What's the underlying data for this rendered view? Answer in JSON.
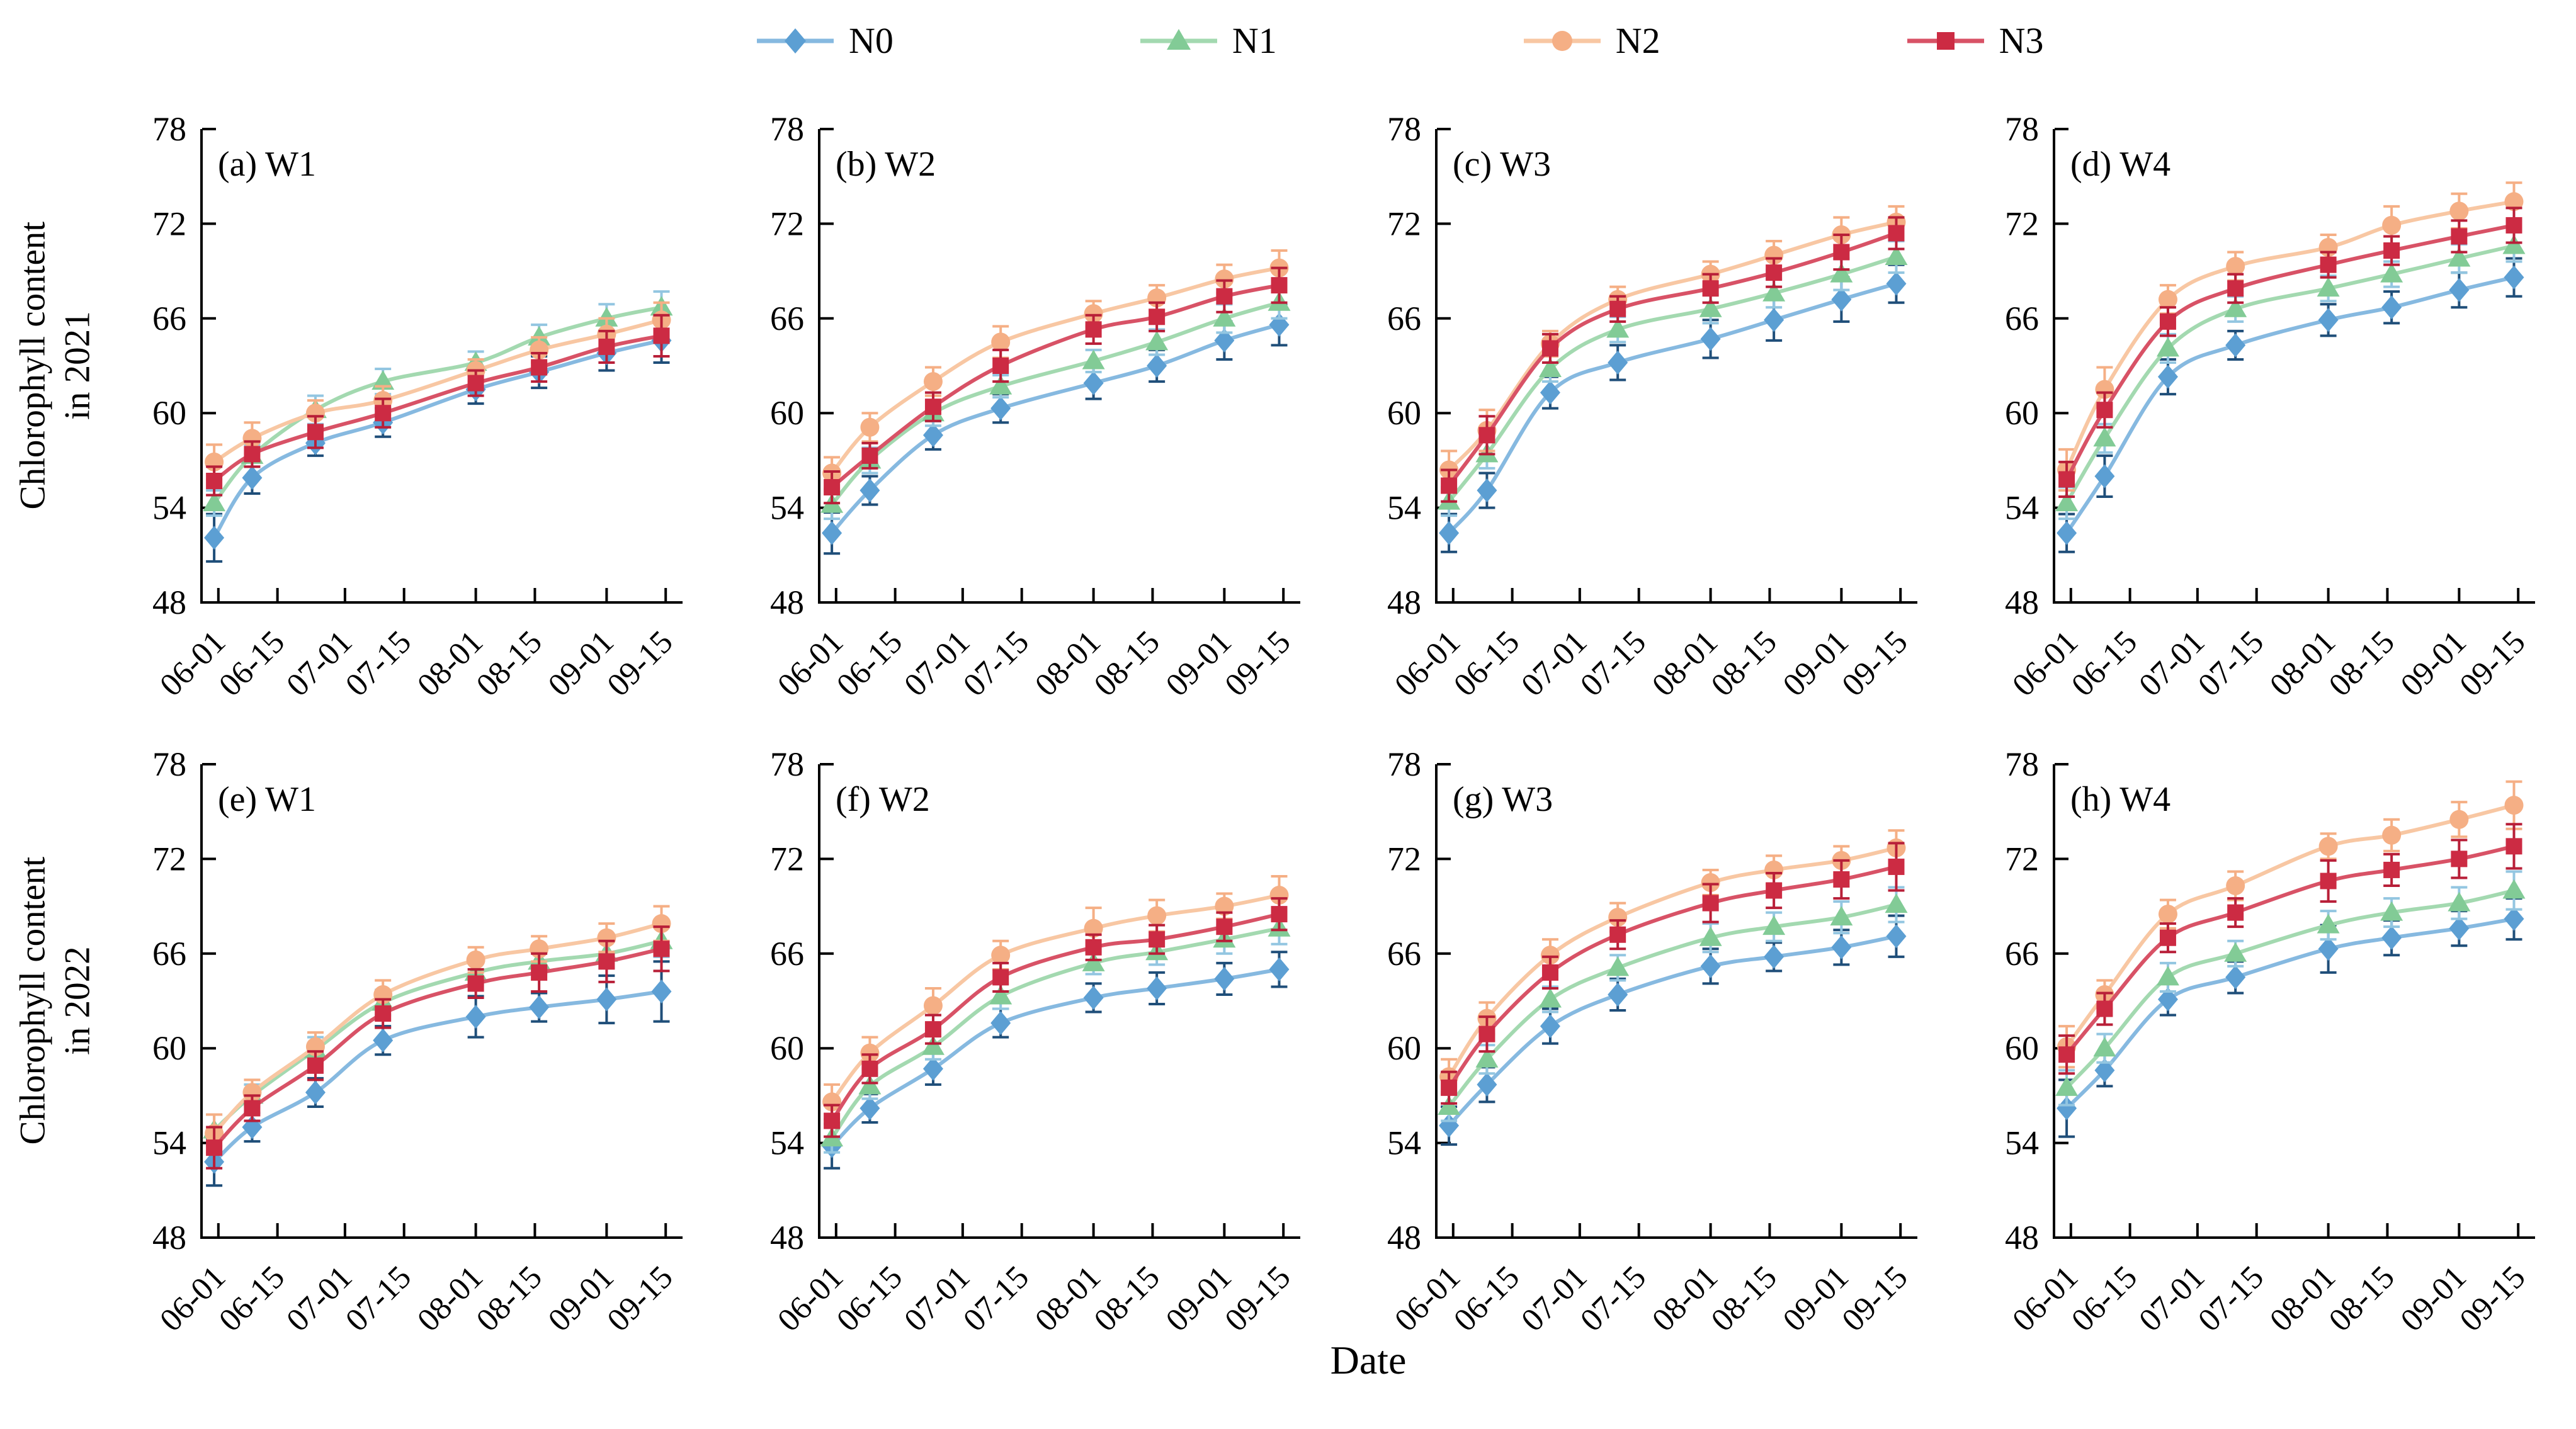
{
  "figure": {
    "legend": [
      {
        "label": "N0"
      },
      {
        "label": "N1"
      },
      {
        "label": "N2"
      },
      {
        "label": "N3"
      }
    ],
    "y_axis_titles": [
      {
        "line1": "Chlorophyll content",
        "line2": "in 2021"
      },
      {
        "line1": "Chlorophyll content",
        "line2": "in 2022"
      }
    ],
    "x_axis_title": "Date"
  },
  "chart_data": {
    "type": "line",
    "ylim": [
      48,
      78
    ],
    "y_ticks": [
      48,
      54,
      60,
      66,
      72,
      78
    ],
    "x_tick_labels": [
      "06-01",
      "06-15",
      "07-01",
      "07-15",
      "08-01",
      "08-15",
      "09-01",
      "09-15"
    ],
    "x_tick_days": [
      0,
      14,
      30,
      44,
      61,
      75,
      92,
      106
    ],
    "x_domain_days": [
      -4,
      110
    ],
    "x_point_days": [
      -1,
      8,
      23,
      39,
      61,
      76,
      92,
      105
    ],
    "x_point_dates_estimated": [
      "05-31",
      "06-09",
      "06-24",
      "07-10",
      "08-01",
      "08-16",
      "09-01",
      "09-14"
    ],
    "grid": false,
    "legend_position": "top",
    "series_styles": {
      "N0": {
        "marker": "diamond",
        "marker_color": "#5C9FD3",
        "line_color": "#86B9E0",
        "error_color": "#1F4E79"
      },
      "N1": {
        "marker": "triangle",
        "marker_color": "#82CB96",
        "line_color": "#A3D9B0",
        "error_color": "#93C6E1"
      },
      "N2": {
        "marker": "circle",
        "marker_color": "#F5AF85",
        "line_color": "#F8C7A3",
        "error_color": "#F5AF85"
      },
      "N3": {
        "marker": "square",
        "marker_color": "#CC2B43",
        "line_color": "#D85266",
        "error_color": "#B81F38"
      }
    },
    "panels": [
      {
        "label": "(a) W1",
        "year": 2021,
        "row": 0,
        "col": 0,
        "series": [
          {
            "name": "N0",
            "values": [
              52.1,
              55.9,
              58.1,
              59.4,
              61.5,
              62.6,
              63.8,
              64.6
            ],
            "errors": [
              1.5,
              1.0,
              0.8,
              0.9,
              0.9,
              1.0,
              1.1,
              1.4
            ]
          },
          {
            "name": "N1",
            "values": [
              54.3,
              57.3,
              60.2,
              62.0,
              63.2,
              64.8,
              66.0,
              66.7
            ],
            "errors": [
              0.8,
              0.7,
              0.9,
              0.8,
              0.7,
              0.8,
              0.9,
              1.0
            ]
          },
          {
            "name": "N2",
            "values": [
              56.9,
              58.4,
              60.0,
              60.8,
              62.7,
              64.0,
              65.0,
              65.9
            ],
            "errors": [
              1.1,
              1.0,
              0.8,
              0.9,
              0.7,
              0.8,
              1.0,
              1.1
            ]
          },
          {
            "name": "N3",
            "values": [
              55.7,
              57.4,
              58.8,
              60.0,
              61.9,
              62.9,
              64.2,
              64.9
            ],
            "errors": [
              0.9,
              0.8,
              1.0,
              0.9,
              0.8,
              0.9,
              1.0,
              1.3
            ]
          }
        ]
      },
      {
        "label": "(b) W2",
        "year": 2021,
        "row": 0,
        "col": 1,
        "series": [
          {
            "name": "N0",
            "values": [
              52.4,
              55.1,
              58.6,
              60.3,
              61.9,
              63.0,
              64.6,
              65.6
            ],
            "errors": [
              1.3,
              0.9,
              0.9,
              0.9,
              1.0,
              1.0,
              1.2,
              1.3
            ]
          },
          {
            "name": "N1",
            "values": [
              54.2,
              57.0,
              60.0,
              61.7,
              63.3,
              64.5,
              66.0,
              67.0
            ],
            "errors": [
              0.9,
              0.8,
              0.8,
              0.7,
              0.7,
              0.8,
              0.9,
              1.0
            ]
          },
          {
            "name": "N2",
            "values": [
              56.2,
              59.1,
              62.0,
              64.5,
              66.3,
              67.3,
              68.5,
              69.2
            ],
            "errors": [
              1.0,
              0.9,
              0.9,
              1.0,
              0.8,
              0.8,
              0.9,
              1.1
            ]
          },
          {
            "name": "N3",
            "values": [
              55.3,
              57.3,
              60.4,
              63.0,
              65.3,
              66.1,
              67.4,
              68.1
            ],
            "errors": [
              1.0,
              0.8,
              0.9,
              1.0,
              0.9,
              0.9,
              1.0,
              1.1
            ]
          }
        ]
      },
      {
        "label": "(c) W3",
        "year": 2021,
        "row": 0,
        "col": 2,
        "series": [
          {
            "name": "N0",
            "values": [
              52.4,
              55.1,
              61.3,
              63.2,
              64.7,
              65.9,
              67.2,
              68.2
            ],
            "errors": [
              1.2,
              1.1,
              1.0,
              1.1,
              1.2,
              1.3,
              1.4,
              1.2
            ]
          },
          {
            "name": "N1",
            "values": [
              54.4,
              57.4,
              62.8,
              65.3,
              66.6,
              67.6,
              68.8,
              69.9
            ],
            "errors": [
              0.9,
              0.9,
              0.8,
              0.8,
              0.9,
              0.9,
              1.0,
              1.0
            ]
          },
          {
            "name": "N2",
            "values": [
              56.4,
              58.9,
              64.4,
              67.2,
              68.8,
              70.0,
              71.3,
              72.1
            ],
            "errors": [
              1.2,
              1.3,
              0.8,
              0.8,
              0.8,
              0.9,
              1.1,
              1.0
            ]
          },
          {
            "name": "N3",
            "values": [
              55.4,
              58.6,
              64.1,
              66.6,
              67.9,
              68.9,
              70.2,
              71.4
            ],
            "errors": [
              1.0,
              1.2,
              0.9,
              0.8,
              0.9,
              0.9,
              1.1,
              1.0
            ]
          }
        ]
      },
      {
        "label": "(d) W4",
        "year": 2021,
        "row": 0,
        "col": 3,
        "series": [
          {
            "name": "N0",
            "values": [
              52.4,
              56.0,
              62.3,
              64.3,
              65.9,
              66.7,
              67.8,
              68.6
            ],
            "errors": [
              1.2,
              1.3,
              1.1,
              0.9,
              1.0,
              1.0,
              1.1,
              1.2
            ]
          },
          {
            "name": "N1",
            "values": [
              54.3,
              58.4,
              64.1,
              66.6,
              67.9,
              68.8,
              69.8,
              70.6
            ],
            "errors": [
              1.0,
              0.9,
              0.9,
              0.8,
              0.8,
              0.8,
              0.9,
              1.0
            ]
          },
          {
            "name": "N2",
            "values": [
              56.4,
              61.5,
              67.2,
              69.3,
              70.5,
              71.9,
              72.8,
              73.4
            ],
            "errors": [
              1.3,
              1.4,
              0.9,
              0.9,
              0.8,
              1.2,
              1.1,
              1.2
            ]
          },
          {
            "name": "N3",
            "values": [
              55.8,
              60.2,
              65.8,
              67.9,
              69.4,
              70.3,
              71.2,
              71.9
            ],
            "errors": [
              1.1,
              1.1,
              0.9,
              0.9,
              0.8,
              0.9,
              1.0,
              1.1
            ]
          }
        ]
      },
      {
        "label": "(e) W1",
        "year": 2022,
        "row": 1,
        "col": 0,
        "series": [
          {
            "name": "N0",
            "values": [
              52.8,
              55.0,
              57.2,
              60.5,
              62.0,
              62.6,
              63.1,
              63.6
            ],
            "errors": [
              1.5,
              0.9,
              0.9,
              0.9,
              1.3,
              0.9,
              1.5,
              1.9
            ]
          },
          {
            "name": "N1",
            "values": [
              54.8,
              57.0,
              59.9,
              62.9,
              64.8,
              65.5,
              66.0,
              66.8
            ],
            "errors": [
              1.0,
              0.7,
              0.8,
              0.8,
              0.8,
              0.8,
              0.9,
              1.0
            ]
          },
          {
            "name": "N2",
            "values": [
              54.6,
              57.2,
              60.1,
              63.4,
              65.6,
              66.3,
              67.0,
              67.9
            ],
            "errors": [
              1.2,
              0.8,
              0.9,
              0.9,
              0.8,
              0.8,
              0.9,
              1.1
            ]
          },
          {
            "name": "N3",
            "values": [
              53.7,
              56.2,
              58.9,
              62.2,
              64.1,
              64.8,
              65.5,
              66.3
            ],
            "errors": [
              1.3,
              0.8,
              0.9,
              0.9,
              0.9,
              1.2,
              1.3,
              1.4
            ]
          }
        ]
      },
      {
        "label": "(f) W2",
        "year": 2022,
        "row": 1,
        "col": 1,
        "series": [
          {
            "name": "N0",
            "values": [
              53.8,
              56.2,
              58.7,
              61.6,
              63.2,
              63.8,
              64.4,
              65.0
            ],
            "errors": [
              1.4,
              0.9,
              1.0,
              0.9,
              0.9,
              1.0,
              1.0,
              1.1
            ]
          },
          {
            "name": "N1",
            "values": [
              54.3,
              57.6,
              60.1,
              63.3,
              65.4,
              66.1,
              66.9,
              67.6
            ],
            "errors": [
              0.9,
              0.8,
              0.8,
              0.8,
              0.7,
              0.8,
              0.9,
              1.0
            ]
          },
          {
            "name": "N2",
            "values": [
              56.6,
              59.7,
              62.7,
              65.9,
              67.6,
              68.4,
              69.0,
              69.7
            ],
            "errors": [
              1.1,
              1.0,
              1.1,
              0.9,
              1.3,
              1.0,
              0.8,
              1.2
            ]
          },
          {
            "name": "N3",
            "values": [
              55.4,
              58.7,
              61.2,
              64.5,
              66.4,
              66.9,
              67.7,
              68.5
            ],
            "errors": [
              1.0,
              0.9,
              0.9,
              0.9,
              0.8,
              0.9,
              0.9,
              1.0
            ]
          }
        ]
      },
      {
        "label": "(g) W3",
        "year": 2022,
        "row": 1,
        "col": 2,
        "series": [
          {
            "name": "N0",
            "values": [
              55.1,
              57.7,
              61.4,
              63.4,
              65.2,
              65.8,
              66.4,
              67.1
            ],
            "errors": [
              1.2,
              1.1,
              1.1,
              1.0,
              1.1,
              0.9,
              1.1,
              1.3
            ]
          },
          {
            "name": "N1",
            "values": [
              56.3,
              59.3,
              63.1,
              65.1,
              67.0,
              67.7,
              68.3,
              69.1
            ],
            "errors": [
              0.9,
              0.9,
              0.8,
              0.8,
              0.9,
              0.9,
              1.0,
              1.1
            ]
          },
          {
            "name": "N2",
            "values": [
              58.2,
              61.9,
              65.9,
              68.3,
              70.5,
              71.3,
              71.9,
              72.7
            ],
            "errors": [
              1.1,
              1.0,
              1.0,
              0.9,
              0.8,
              0.9,
              0.9,
              1.1
            ]
          },
          {
            "name": "N3",
            "values": [
              57.5,
              60.9,
              64.8,
              67.2,
              69.2,
              70.0,
              70.7,
              71.5
            ],
            "errors": [
              1.0,
              1.1,
              1.0,
              0.9,
              1.2,
              1.1,
              1.2,
              1.5
            ]
          }
        ]
      },
      {
        "label": "(h) W4",
        "year": 2022,
        "row": 1,
        "col": 3,
        "series": [
          {
            "name": "N0",
            "values": [
              56.2,
              58.6,
              63.1,
              64.5,
              66.3,
              67.0,
              67.6,
              68.2
            ],
            "errors": [
              1.8,
              1.0,
              1.0,
              1.0,
              1.5,
              1.1,
              1.1,
              1.3
            ]
          },
          {
            "name": "N1",
            "values": [
              57.5,
              60.0,
              64.5,
              66.0,
              67.8,
              68.6,
              69.2,
              70.0
            ],
            "errors": [
              1.1,
              0.9,
              0.9,
              0.8,
              0.9,
              0.9,
              1.0,
              1.2
            ]
          },
          {
            "name": "N2",
            "values": [
              60.1,
              63.4,
              68.5,
              70.3,
              72.8,
              73.5,
              74.5,
              75.4
            ],
            "errors": [
              1.3,
              0.9,
              0.9,
              0.9,
              0.8,
              1.0,
              1.1,
              1.5
            ]
          },
          {
            "name": "N3",
            "values": [
              59.6,
              62.5,
              67.0,
              68.6,
              70.6,
              71.3,
              72.0,
              72.8
            ],
            "errors": [
              1.2,
              1.0,
              0.9,
              0.9,
              1.3,
              1.0,
              1.2,
              1.4
            ]
          }
        ]
      }
    ]
  }
}
